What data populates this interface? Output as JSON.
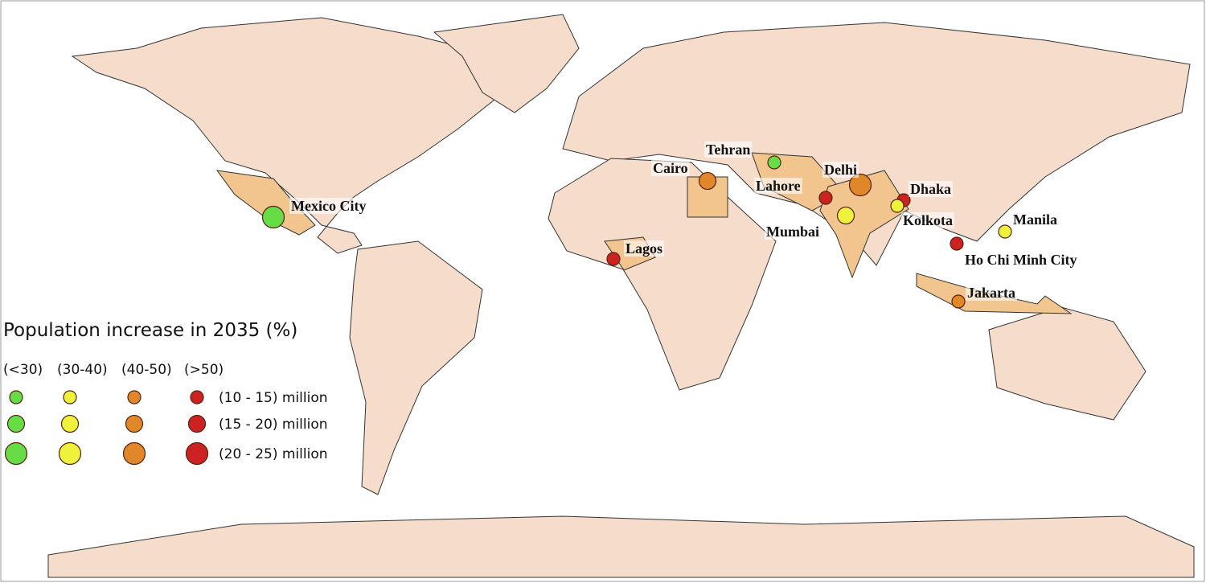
{
  "legend": {
    "title": "Population increase  in 2035 (%)",
    "growth_classes": [
      {
        "label": "(<30)",
        "color": "#66dd44"
      },
      {
        "label": "(30-40)",
        "color": "#eef23a"
      },
      {
        "label": "(40-50)",
        "color": "#e0872a"
      },
      {
        "label": "(>50)",
        "color": "#cc2222"
      }
    ],
    "size_classes": [
      "(10 - 15) million",
      "(15 - 20) million",
      "(20 - 25) million"
    ]
  },
  "cities": [
    {
      "name": "Mexico City",
      "growth_class": 0,
      "size_class": 2
    },
    {
      "name": "Tehran",
      "growth_class": 0,
      "size_class": 0
    },
    {
      "name": "Cairo",
      "growth_class": 2,
      "size_class": 1
    },
    {
      "name": "Delhi",
      "growth_class": 2,
      "size_class": 2
    },
    {
      "name": "Lahore",
      "growth_class": 3,
      "size_class": 0
    },
    {
      "name": "Dhaka",
      "growth_class": 3,
      "size_class": 0
    },
    {
      "name": "Kolkota",
      "growth_class": 1,
      "size_class": 0
    },
    {
      "name": "Mumbai",
      "growth_class": 1,
      "size_class": 1
    },
    {
      "name": "Manila",
      "growth_class": 1,
      "size_class": 0
    },
    {
      "name": "Ho Chi Minh City",
      "growth_class": 3,
      "size_class": 0
    },
    {
      "name": "Lagos",
      "growth_class": 3,
      "size_class": 0
    },
    {
      "name": "Jakarta",
      "growth_class": 2,
      "size_class": 0
    }
  ]
}
